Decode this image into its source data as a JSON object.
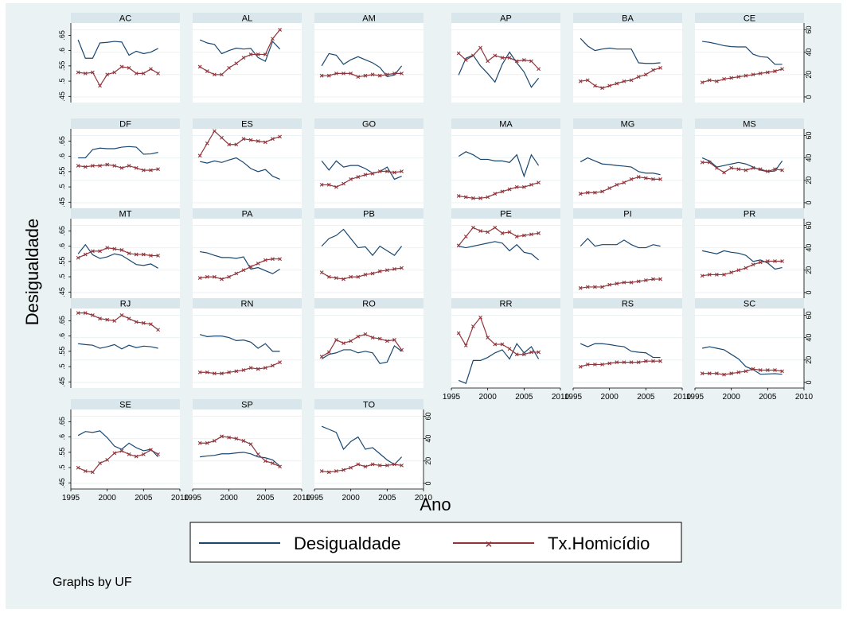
{
  "figure": {
    "ylabel": "Desigualdade",
    "xlabel": "Ano",
    "note": "Graphs by UF",
    "legend": [
      "Desigualdade",
      "Tx.Homicídio"
    ]
  },
  "chart_data": {
    "type": "line",
    "layout": "small-multiples by UF",
    "years": [
      1996,
      1997,
      1998,
      1999,
      2000,
      2001,
      2002,
      2003,
      2004,
      2005,
      2006,
      2007
    ],
    "x_ticks": [
      1995,
      2000,
      2005,
      2010
    ],
    "xlim": [
      1995,
      2010
    ],
    "left_axis": {
      "label": "Desigualdade",
      "ticks": [
        0.45,
        0.5,
        0.55,
        0.6,
        0.65
      ],
      "tick_labels": [
        ".45",
        ".5",
        ".55",
        ".6",
        ".65"
      ],
      "ylim": [
        0.43,
        0.69
      ]
    },
    "right_axis": {
      "ticks": [
        0,
        20,
        40,
        60
      ],
      "tick_labels": [
        "0",
        "20",
        "40",
        "60"
      ],
      "ylim": [
        -5,
        66
      ]
    },
    "grid": "horizontal",
    "legend_position": "bottom",
    "series_colors": {
      "Desigualdade": "#1a476f",
      "Tx.Homicídio": "#90353b"
    },
    "panels": [
      {
        "uf": "AC",
        "desigualdade": [
          0.635,
          0.575,
          0.575,
          0.625,
          0.627,
          0.63,
          0.628,
          0.585,
          0.598,
          0.59,
          0.595,
          0.607
        ],
        "homicidio": [
          22,
          21,
          22,
          10,
          20,
          22,
          27,
          26,
          21,
          21,
          25,
          21
        ]
      },
      {
        "uf": "AL",
        "desigualdade": [
          0.635,
          0.625,
          0.62,
          0.59,
          0.6,
          0.608,
          0.605,
          0.607,
          0.577,
          0.565,
          0.63,
          0.605
        ],
        "homicidio": [
          27,
          23,
          20,
          20,
          26,
          30,
          35,
          38,
          38,
          38,
          52,
          60
        ]
      },
      {
        "uf": "AM",
        "desigualdade": [
          0.55,
          0.59,
          0.585,
          0.555,
          0.57,
          0.58,
          0.57,
          0.56,
          0.545,
          0.515,
          0.52,
          0.55
        ],
        "homicidio": [
          19,
          19,
          21,
          21,
          21,
          18,
          19,
          20,
          19,
          20,
          21,
          21
        ]
      },
      {
        "uf": "AP",
        "desigualdade": [
          0.52,
          0.575,
          0.585,
          0.55,
          0.525,
          0.497,
          0.555,
          0.595,
          0.56,
          0.53,
          0.48,
          0.51
        ],
        "homicidio": [
          39,
          33,
          37,
          44,
          32,
          37,
          35,
          35,
          32,
          33,
          32,
          25
        ]
      },
      {
        "uf": "BA",
        "desigualdade": [
          0.64,
          0.615,
          0.6,
          0.605,
          0.608,
          0.605,
          0.605,
          0.605,
          0.56,
          0.558,
          0.558,
          0.56
        ],
        "homicidio": [
          14,
          15,
          10,
          8,
          10,
          12,
          14,
          15,
          18,
          20,
          24,
          26
        ]
      },
      {
        "uf": "CE",
        "desigualdade": [
          0.63,
          0.627,
          0.622,
          0.616,
          0.613,
          0.612,
          0.612,
          0.588,
          0.58,
          0.578,
          0.555,
          0.555
        ],
        "homicidio": [
          13,
          15,
          14,
          16,
          17,
          18,
          19,
          20,
          21,
          22,
          23,
          25
        ]
      },
      {
        "uf": "DF",
        "desigualdade": [
          0.595,
          0.595,
          0.622,
          0.627,
          0.625,
          0.625,
          0.63,
          0.632,
          0.63,
          0.607,
          0.608,
          0.613
        ],
        "homicidio": [
          33,
          32,
          33,
          33,
          34,
          33,
          31,
          33,
          31,
          29,
          29,
          30
        ]
      },
      {
        "uf": "ES",
        "desigualdade": [
          0.583,
          0.578,
          0.585,
          0.58,
          0.588,
          0.595,
          0.58,
          0.56,
          0.55,
          0.557,
          0.535,
          0.525
        ],
        "homicidio": [
          42,
          53,
          64,
          58,
          52,
          52,
          57,
          56,
          55,
          54,
          57,
          59
        ]
      },
      {
        "uf": "GO",
        "desigualdade": [
          0.585,
          0.555,
          0.585,
          0.565,
          0.57,
          0.57,
          0.56,
          0.545,
          0.55,
          0.565,
          0.525,
          0.535
        ],
        "homicidio": [
          16,
          16,
          14,
          17,
          21,
          23,
          25,
          26,
          28,
          28,
          27,
          28
        ]
      },
      {
        "uf": "MA",
        "desigualdade": [
          0.6,
          0.615,
          0.605,
          0.59,
          0.59,
          0.585,
          0.585,
          0.58,
          0.605,
          0.535,
          0.605,
          0.57
        ],
        "homicidio": [
          6,
          5,
          4,
          4,
          5,
          8,
          10,
          12,
          14,
          14,
          16,
          18
        ]
      },
      {
        "uf": "MG",
        "desigualdade": [
          0.582,
          0.595,
          0.585,
          0.575,
          0.573,
          0.57,
          0.568,
          0.565,
          0.55,
          0.545,
          0.545,
          0.54
        ],
        "homicidio": [
          8,
          9,
          9,
          10,
          13,
          16,
          18,
          21,
          23,
          22,
          21,
          21
        ]
      },
      {
        "uf": "MS",
        "desigualdade": [
          0.595,
          0.585,
          0.565,
          0.57,
          0.575,
          0.58,
          0.575,
          0.565,
          0.555,
          0.55,
          0.552,
          0.585
        ],
        "homicidio": [
          36,
          36,
          31,
          27,
          31,
          30,
          29,
          31,
          30,
          28,
          30,
          29
        ]
      },
      {
        "uf": "MT",
        "desigualdade": [
          0.575,
          0.605,
          0.572,
          0.56,
          0.565,
          0.575,
          0.57,
          0.555,
          0.54,
          0.537,
          0.542,
          0.528
        ],
        "homicidio": [
          31,
          34,
          37,
          37,
          40,
          39,
          38,
          35,
          34,
          34,
          33,
          33
        ]
      },
      {
        "uf": "PA",
        "desigualdade": [
          0.582,
          0.578,
          0.57,
          0.563,
          0.563,
          0.56,
          0.565,
          0.525,
          0.53,
          0.52,
          0.51,
          0.525
        ],
        "homicidio": [
          13,
          14,
          14,
          12,
          14,
          17,
          20,
          23,
          26,
          29,
          30,
          30
        ]
      },
      {
        "uf": "PB",
        "desigualdade": [
          0.6,
          0.625,
          0.635,
          0.655,
          0.625,
          0.595,
          0.598,
          0.57,
          0.6,
          0.585,
          0.57,
          0.6
        ],
        "homicidio": [
          18,
          14,
          13,
          12,
          14,
          14,
          16,
          17,
          19,
          20,
          21,
          22
        ]
      },
      {
        "uf": "PE",
        "desigualdade": [
          0.6,
          0.595,
          0.6,
          0.605,
          0.61,
          0.615,
          0.61,
          0.585,
          0.605,
          0.58,
          0.575,
          0.555
        ],
        "homicidio": [
          42,
          50,
          58,
          55,
          54,
          58,
          53,
          54,
          50,
          51,
          52,
          53
        ]
      },
      {
        "uf": "PI",
        "desigualdade": [
          0.6,
          0.625,
          0.6,
          0.605,
          0.605,
          0.605,
          0.62,
          0.605,
          0.595,
          0.595,
          0.605,
          0.6
        ],
        "homicidio": [
          4,
          5,
          5,
          5,
          7,
          8,
          9,
          9,
          10,
          11,
          12,
          12
        ]
      },
      {
        "uf": "PR",
        "desigualdade": [
          0.585,
          0.58,
          0.575,
          0.585,
          0.58,
          0.577,
          0.57,
          0.55,
          0.555,
          0.545,
          0.525,
          0.53
        ],
        "homicidio": [
          15,
          16,
          16,
          16,
          18,
          20,
          22,
          25,
          27,
          28,
          28,
          28
        ]
      },
      {
        "uf": "RJ",
        "desigualdade": [
          0.575,
          0.572,
          0.57,
          0.56,
          0.565,
          0.572,
          0.558,
          0.57,
          0.562,
          0.567,
          0.565,
          0.56
        ],
        "homicidio": [
          62,
          62,
          60,
          57,
          56,
          55,
          60,
          57,
          54,
          53,
          52,
          47
        ]
      },
      {
        "uf": "RN",
        "desigualdade": [
          0.605,
          0.598,
          0.6,
          0.6,
          0.595,
          0.585,
          0.587,
          0.58,
          0.56,
          0.575,
          0.55,
          0.55
        ],
        "homicidio": [
          9,
          9,
          8,
          8,
          9,
          10,
          11,
          13,
          12,
          13,
          15,
          18
        ]
      },
      {
        "uf": "RO",
        "desigualdade": [
          0.525,
          0.54,
          0.545,
          0.555,
          0.555,
          0.545,
          0.55,
          0.545,
          0.51,
          0.515,
          0.568,
          0.55
        ],
        "homicidio": [
          23,
          27,
          38,
          35,
          37,
          41,
          43,
          40,
          39,
          37,
          38,
          29
        ]
      },
      {
        "uf": "RR",
        "desigualdade": [
          0.455,
          0.445,
          0.52,
          0.52,
          0.53,
          0.545,
          0.555,
          0.525,
          0.575,
          0.545,
          0.565,
          0.525
        ],
        "homicidio": [
          44,
          33,
          50,
          58,
          40,
          34,
          34,
          30,
          25,
          25,
          27,
          27
        ]
      },
      {
        "uf": "RS",
        "desigualdade": [
          0.575,
          0.565,
          0.575,
          0.575,
          0.572,
          0.568,
          0.565,
          0.55,
          0.547,
          0.545,
          0.53,
          0.53
        ],
        "homicidio": [
          14,
          16,
          16,
          16,
          17,
          18,
          18,
          18,
          18,
          19,
          19,
          19
        ]
      },
      {
        "uf": "SC",
        "desigualdade": [
          0.56,
          0.565,
          0.56,
          0.555,
          0.54,
          0.525,
          0.5,
          0.49,
          0.475,
          0.476,
          0.477,
          0.475
        ],
        "homicidio": [
          8,
          8,
          8,
          7,
          8,
          9,
          10,
          12,
          11,
          11,
          11,
          10
        ]
      },
      {
        "uf": "SE",
        "desigualdade": [
          0.605,
          0.618,
          0.615,
          0.62,
          0.598,
          0.57,
          0.56,
          0.58,
          0.565,
          0.555,
          0.56,
          0.535
        ],
        "homicidio": [
          14,
          11,
          10,
          18,
          21,
          27,
          29,
          26,
          24,
          26,
          30,
          26
        ]
      },
      {
        "uf": "SP",
        "desigualdade": [
          0.535,
          0.538,
          0.54,
          0.545,
          0.545,
          0.548,
          0.55,
          0.545,
          0.535,
          0.532,
          0.525,
          0.505
        ],
        "homicidio": [
          36,
          36,
          38,
          42,
          41,
          40,
          38,
          35,
          26,
          20,
          18,
          15
        ]
      },
      {
        "uf": "TO",
        "desigualdade": [
          0.635,
          0.625,
          0.615,
          0.56,
          0.585,
          0.6,
          0.56,
          0.565,
          0.545,
          0.525,
          0.51,
          0.535
        ],
        "homicidio": [
          11,
          10,
          11,
          12,
          14,
          17,
          15,
          17,
          16,
          16,
          17,
          16
        ]
      }
    ]
  }
}
